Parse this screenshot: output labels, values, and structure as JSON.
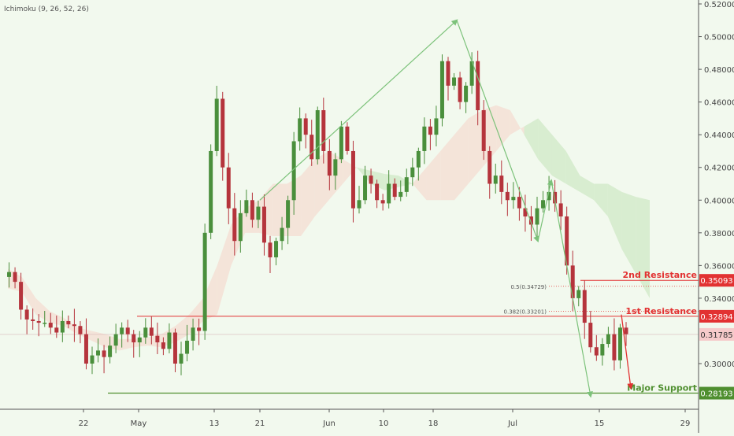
{
  "indicator_label": "Ichimoku (9, 26, 52, 26)",
  "colors": {
    "background": "#f2f9ee",
    "up_candle": "#4a8f3c",
    "down_candle": "#b5343c",
    "cloud_bull": "#cfe8c6",
    "cloud_bear": "#f4dcd2",
    "resistance": "#e23232",
    "support": "#4f8f2f",
    "current_price": "#f6caca",
    "arrow_green": "#7cc27a",
    "arrow_red": "#e23232"
  },
  "chart_data": {
    "type": "candlestick",
    "x_ticks": [
      "22",
      "May",
      "13",
      "21",
      "Jun",
      "10",
      "18",
      "Jul",
      "15",
      "29"
    ],
    "y_ticks": [
      "0.52000",
      "0.50000",
      "0.48000",
      "0.46000",
      "0.44000",
      "0.42000",
      "0.40000",
      "0.38000",
      "0.36000",
      "0.34000",
      "0.30000"
    ],
    "ylim": [
      0.278,
      0.52
    ],
    "grid": false,
    "levels": [
      {
        "name": "2nd Resistance",
        "price": 0.35093,
        "label": "0.35093"
      },
      {
        "name": "1st Resistance",
        "price": 0.32894,
        "label": "0.32894"
      },
      {
        "name": "Major Support",
        "price": 0.28193,
        "label": "0.28193"
      }
    ],
    "current_price": {
      "price": 0.31785,
      "label": "0.31785"
    },
    "fib_levels": [
      {
        "label": "0.5(0.34729)",
        "price": 0.34729
      },
      {
        "label": "0.382(0.33201)",
        "price": 0.33201
      }
    ],
    "price_path": [
      0.353,
      0.356,
      0.35,
      0.333,
      0.327,
      0.326,
      0.325,
      0.325,
      0.322,
      0.319,
      0.326,
      0.324,
      0.323,
      0.318,
      0.3,
      0.305,
      0.308,
      0.304,
      0.311,
      0.318,
      0.322,
      0.318,
      0.313,
      0.316,
      0.322,
      0.317,
      0.313,
      0.309,
      0.319,
      0.3,
      0.306,
      0.314,
      0.322,
      0.32,
      0.38,
      0.43,
      0.462,
      0.42,
      0.395,
      0.375,
      0.392,
      0.4,
      0.388,
      0.396,
      0.374,
      0.365,
      0.375,
      0.383,
      0.4,
      0.436,
      0.45,
      0.44,
      0.425,
      0.455,
      0.43,
      0.415,
      0.425,
      0.445,
      0.43,
      0.395,
      0.4,
      0.415,
      0.41,
      0.4,
      0.398,
      0.41,
      0.402,
      0.405,
      0.414,
      0.42,
      0.43,
      0.445,
      0.44,
      0.45,
      0.485,
      0.47,
      0.475,
      0.46,
      0.47,
      0.485,
      0.455,
      0.43,
      0.41,
      0.415,
      0.405,
      0.4,
      0.402,
      0.395,
      0.39,
      0.385,
      0.395,
      0.4,
      0.405,
      0.398,
      0.39,
      0.36,
      0.34,
      0.345,
      0.325,
      0.31,
      0.305,
      0.312,
      0.318,
      0.302,
      0.322,
      0.318
    ],
    "cloud_bull_path": [
      0.346,
      0.344,
      0.33,
      0.325,
      0.323,
      0.318,
      0.314,
      0.31,
      0.308,
      0.31,
      0.311,
      0.31,
      0.313,
      0.318,
      0.326,
      0.33,
      0.36,
      0.38,
      0.38,
      0.378,
      0.378,
      0.378,
      0.39,
      0.4,
      0.41,
      0.42,
      0.418,
      0.416,
      0.415,
      0.41,
      0.4,
      0.4,
      0.4,
      0.41,
      0.42,
      0.43,
      0.44,
      0.445,
      0.45,
      0.44,
      0.43,
      0.415,
      0.41,
      0.41,
      0.405,
      0.402,
      0.4
    ],
    "cloud_bear_path": [
      0.358,
      0.353,
      0.34,
      0.332,
      0.328,
      0.322,
      0.32,
      0.318,
      0.315,
      0.315,
      0.316,
      0.318,
      0.323,
      0.33,
      0.34,
      0.36,
      0.385,
      0.395,
      0.4,
      0.41,
      0.41,
      0.415,
      0.425,
      0.43,
      0.425,
      0.42,
      0.41,
      0.406,
      0.408,
      0.41,
      0.42,
      0.43,
      0.44,
      0.45,
      0.455,
      0.458,
      0.455,
      0.44,
      0.425,
      0.415,
      0.41,
      0.405,
      0.4,
      0.39,
      0.37,
      0.355,
      0.34
    ],
    "arrows": [
      {
        "from": [
          "May 21",
          0.4
        ],
        "to": [
          "Jun 18",
          0.51
        ],
        "type": "green"
      },
      {
        "from": [
          "Jun 18",
          0.51
        ],
        "to": [
          "Jul 1",
          0.375
        ],
        "type": "green"
      },
      {
        "from": [
          "Jul 1",
          0.375
        ],
        "to": [
          "Jul 5",
          0.412
        ],
        "type": "green"
      },
      {
        "from": [
          "Jul 5",
          0.412
        ],
        "to": [
          "Jul 13",
          0.28
        ],
        "type": "green"
      },
      {
        "from": [
          "Jul 18",
          0.33
        ],
        "to": [
          "Jul 20",
          0.285
        ],
        "type": "red"
      }
    ]
  }
}
